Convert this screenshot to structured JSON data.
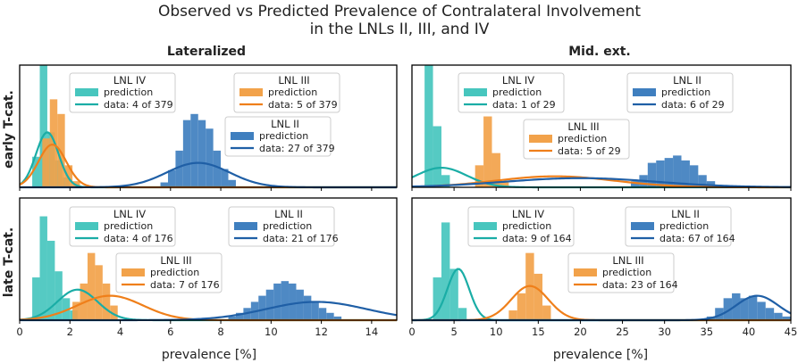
{
  "figure": {
    "title_line1": "Observed vs Predicted Prevalence of Contralateral Involvement",
    "title_line2": "in the LNLs II, III, and IV",
    "col_titles": [
      "Lateralized",
      "Mid. ext."
    ],
    "row_titles": [
      "early T-cat.",
      "late T-cat."
    ],
    "xlabel": "prevalence [%]",
    "colors": {
      "LNL_II": "#1f5fa6",
      "LNL_II_hist": "#3f7fbf",
      "LNL_III": "#ef7f1a",
      "LNL_III_hist": "#f2a24a",
      "LNL_IV": "#1aada6",
      "LNL_IV_hist": "#47c6be"
    }
  },
  "chart_data": [
    {
      "type": "histogram+line",
      "panel": "early-lateralized",
      "row": "early T-cat.",
      "col": "Lateralized",
      "xlim": [
        0,
        15
      ],
      "xticks": [
        0,
        2,
        4,
        6,
        8,
        10,
        12,
        14
      ],
      "series": [
        {
          "lnl": "LNL IV",
          "data_label": "data: 4 of 379",
          "hist_bins": [
            [
              0.5,
              0.8,
              0.25
            ],
            [
              0.8,
              1.1,
              1.0
            ],
            [
              1.1,
              1.4,
              0.45
            ],
            [
              1.4,
              1.7,
              0.22
            ],
            [
              1.7,
              2.0,
              0.08
            ]
          ],
          "curve": {
            "mu": 1.1,
            "sigma": 0.45,
            "height": 0.45
          }
        },
        {
          "lnl": "LNL III",
          "data_label": "data: 5 of 379",
          "hist_bins": [
            [
              0.9,
              1.2,
              0.4
            ],
            [
              1.2,
              1.5,
              0.72
            ],
            [
              1.5,
              1.8,
              0.6
            ],
            [
              1.8,
              2.1,
              0.18
            ],
            [
              2.1,
              2.4,
              0.05
            ]
          ],
          "curve": {
            "mu": 1.3,
            "sigma": 0.55,
            "height": 0.35
          }
        },
        {
          "lnl": "LNL II",
          "data_label": "data: 27 of 379",
          "hist_bins": [
            [
              5.6,
              5.9,
              0.04
            ],
            [
              5.9,
              6.2,
              0.14
            ],
            [
              6.2,
              6.5,
              0.3
            ],
            [
              6.5,
              6.8,
              0.55
            ],
            [
              6.8,
              7.1,
              0.6
            ],
            [
              7.1,
              7.4,
              0.55
            ],
            [
              7.4,
              7.7,
              0.48
            ],
            [
              7.7,
              8.0,
              0.3
            ],
            [
              8.0,
              8.3,
              0.15
            ],
            [
              8.3,
              8.6,
              0.06
            ]
          ],
          "curve": {
            "mu": 7.1,
            "sigma": 1.25,
            "height": 0.2
          }
        }
      ]
    },
    {
      "type": "histogram+line",
      "panel": "early-midext",
      "row": "early T-cat.",
      "col": "Mid. ext.",
      "xlim": [
        0,
        45
      ],
      "xticks": [
        0,
        5,
        10,
        15,
        20,
        25,
        30,
        35,
        40,
        45
      ],
      "series": [
        {
          "lnl": "LNL IV",
          "data_label": "data: 1 of 29",
          "hist_bins": [
            [
              1.5,
              2.5,
              1.0
            ],
            [
              2.5,
              3.5,
              0.5
            ],
            [
              3.5,
              4.5,
              0.1
            ]
          ],
          "curve": {
            "mu": 3.5,
            "sigma": 3.0,
            "height": 0.16
          }
        },
        {
          "lnl": "LNL III",
          "data_label": "data: 5 of 29",
          "hist_bins": [
            [
              7.5,
              8.5,
              0.18
            ],
            [
              8.5,
              9.5,
              0.58
            ],
            [
              9.5,
              10.5,
              0.28
            ],
            [
              10.5,
              11.5,
              0.05
            ]
          ],
          "curve": {
            "mu": 17.0,
            "sigma": 7.0,
            "height": 0.09
          }
        },
        {
          "lnl": "LNL II",
          "data_label": "data: 6 of 29",
          "hist_bins": [
            [
              26,
              27,
              0.05
            ],
            [
              27,
              28,
              0.1
            ],
            [
              28,
              29,
              0.2
            ],
            [
              29,
              30,
              0.22
            ],
            [
              30,
              31,
              0.24
            ],
            [
              31,
              32,
              0.26
            ],
            [
              32,
              33,
              0.22
            ],
            [
              33,
              34,
              0.18
            ],
            [
              34,
              35,
              0.1
            ],
            [
              35,
              36,
              0.05
            ]
          ],
          "curve": {
            "mu": 20.0,
            "sigma": 9.0,
            "height": 0.075
          }
        }
      ]
    },
    {
      "type": "histogram+line",
      "panel": "late-lateralized",
      "row": "late T-cat.",
      "col": "Lateralized",
      "xlim": [
        0,
        15
      ],
      "xticks": [
        0,
        2,
        4,
        6,
        8,
        10,
        12,
        14
      ],
      "series": [
        {
          "lnl": "LNL IV",
          "data_label": "data: 4 of 176",
          "hist_bins": [
            [
              0.5,
              0.8,
              0.35
            ],
            [
              0.8,
              1.1,
              0.85
            ],
            [
              1.1,
              1.4,
              0.65
            ],
            [
              1.4,
              1.7,
              0.4
            ],
            [
              1.7,
              2.0,
              0.18
            ],
            [
              2.0,
              2.3,
              0.08
            ]
          ],
          "curve": {
            "mu": 2.3,
            "sigma": 0.8,
            "height": 0.25
          }
        },
        {
          "lnl": "LNL III",
          "data_label": "data: 7 of 176",
          "hist_bins": [
            [
              2.1,
              2.4,
              0.15
            ],
            [
              2.4,
              2.7,
              0.3
            ],
            [
              2.7,
              3.0,
              0.55
            ],
            [
              3.0,
              3.3,
              0.45
            ],
            [
              3.3,
              3.6,
              0.3
            ],
            [
              3.6,
              3.9,
              0.12
            ]
          ],
          "curve": {
            "mu": 3.6,
            "sigma": 1.3,
            "height": 0.2
          }
        },
        {
          "lnl": "LNL II",
          "data_label": "data: 21 of 176",
          "hist_bins": [
            [
              8.3,
              8.6,
              0.03
            ],
            [
              8.6,
              8.9,
              0.06
            ],
            [
              8.9,
              9.2,
              0.1
            ],
            [
              9.2,
              9.5,
              0.15
            ],
            [
              9.5,
              9.8,
              0.2
            ],
            [
              9.8,
              10.1,
              0.25
            ],
            [
              10.1,
              10.4,
              0.3
            ],
            [
              10.4,
              10.7,
              0.32
            ],
            [
              10.7,
              11.0,
              0.3
            ],
            [
              11.0,
              11.3,
              0.25
            ],
            [
              11.3,
              11.6,
              0.2
            ],
            [
              11.6,
              11.9,
              0.15
            ],
            [
              11.9,
              12.2,
              0.1
            ],
            [
              12.2,
              12.5,
              0.06
            ],
            [
              12.5,
              12.8,
              0.03
            ]
          ],
          "curve": {
            "mu": 11.8,
            "sigma": 2.0,
            "height": 0.15
          }
        }
      ]
    },
    {
      "type": "histogram+line",
      "panel": "late-midext",
      "row": "late T-cat.",
      "col": "Mid. ext.",
      "xlim": [
        0,
        45
      ],
      "xticks": [
        0,
        5,
        10,
        15,
        20,
        25,
        30,
        35,
        40,
        45
      ],
      "series": [
        {
          "lnl": "LNL IV",
          "data_label": "data: 9 of 164",
          "hist_bins": [
            [
              2.5,
              3.5,
              0.35
            ],
            [
              3.5,
              4.5,
              0.8
            ],
            [
              4.5,
              5.5,
              0.42
            ],
            [
              5.5,
              6.5,
              0.1
            ]
          ],
          "curve": {
            "mu": 5.5,
            "sigma": 1.3,
            "height": 0.42
          }
        },
        {
          "lnl": "LNL III",
          "data_label": "data: 23 of 164",
          "hist_bins": [
            [
              11.5,
              12.5,
              0.08
            ],
            [
              12.5,
              13.5,
              0.22
            ],
            [
              13.5,
              14.5,
              0.55
            ],
            [
              14.5,
              15.5,
              0.38
            ],
            [
              15.5,
              16.5,
              0.12
            ]
          ],
          "curve": {
            "mu": 14.0,
            "sigma": 2.2,
            "height": 0.28
          }
        },
        {
          "lnl": "LNL II",
          "data_label": "data: 67 of 164",
          "hist_bins": [
            [
              35,
              36,
              0.03
            ],
            [
              36,
              37,
              0.1
            ],
            [
              37,
              38,
              0.18
            ],
            [
              38,
              39,
              0.22
            ],
            [
              39,
              40,
              0.18
            ],
            [
              40,
              41,
              0.2
            ],
            [
              41,
              42,
              0.15
            ],
            [
              42,
              43,
              0.1
            ],
            [
              43,
              44,
              0.06
            ],
            [
              44,
              45,
              0.03
            ]
          ],
          "curve": {
            "mu": 41.0,
            "sigma": 2.5,
            "height": 0.2
          }
        }
      ]
    }
  ],
  "legend_prediction_label": "prediction"
}
